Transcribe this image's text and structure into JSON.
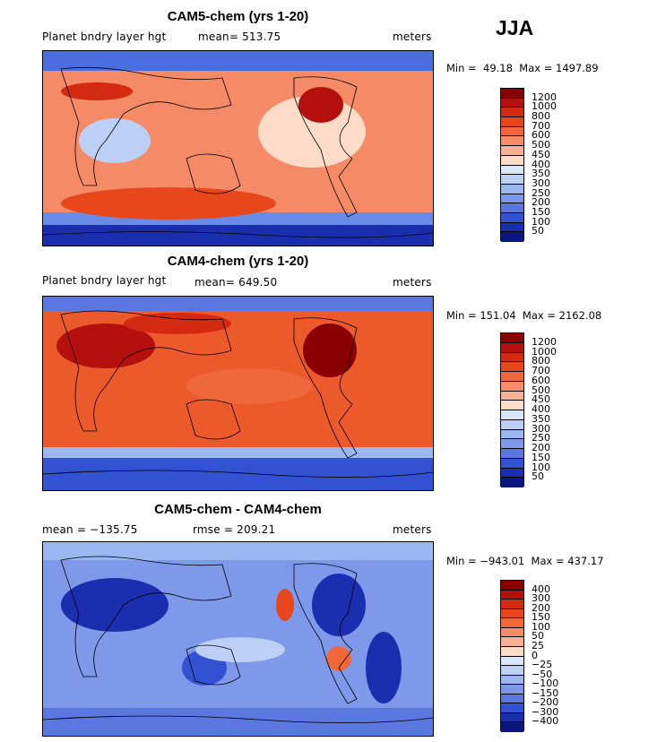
{
  "season": "JJA",
  "panels": [
    {
      "title": "CAM5-chem (yrs 1-20)",
      "left_label": "Planet bndry layer hgt",
      "stat_label": "mean=",
      "stat_value": "513.75",
      "units": "meters",
      "min_label": "Min =",
      "min_value": "49.18",
      "max_label": "Max =",
      "max_value": "1497.89",
      "levels": [
        "1200",
        "1000",
        "800",
        "700",
        "600",
        "500",
        "450",
        "400",
        "350",
        "300",
        "250",
        "200",
        "150",
        "100",
        "50"
      ],
      "colors": [
        "#8b0000",
        "#b5100d",
        "#d42a12",
        "#e8461b",
        "#f1673c",
        "#f68c68",
        "#f9b093",
        "#fcdcc8",
        "#d9e7fa",
        "#bcd0f5",
        "#9cb6f0",
        "#7e99ea",
        "#5a76df",
        "#3251d3",
        "#1a2fb0",
        "#0a1780"
      ],
      "map_bg": "#f58a66"
    },
    {
      "title": "CAM4-chem (yrs 1-20)",
      "left_label": "Planet bndry layer hgt",
      "stat_label": "mean=",
      "stat_value": "649.50",
      "units": "meters",
      "min_label": "Min =",
      "min_value": "151.04",
      "max_label": "Max =",
      "max_value": "2162.08",
      "levels": [
        "1200",
        "1000",
        "800",
        "700",
        "600",
        "500",
        "450",
        "400",
        "350",
        "300",
        "250",
        "200",
        "150",
        "100",
        "50"
      ],
      "colors": [
        "#8b0000",
        "#b5100d",
        "#d42a12",
        "#e8461b",
        "#f1673c",
        "#f68c68",
        "#f9b093",
        "#fcdcc8",
        "#d9e7fa",
        "#bcd0f5",
        "#9cb6f0",
        "#7e99ea",
        "#5a76df",
        "#3251d3",
        "#1a2fb0",
        "#0a1780"
      ],
      "map_bg": "#ec5a2c"
    },
    {
      "title": "CAM5-chem - CAM4-chem",
      "left_label": "mean = −135.75",
      "stat_label": "rmse =",
      "stat_value": "209.21",
      "units": "meters",
      "min_label": "Min =",
      "min_value": "−943.01",
      "max_label": "Max =",
      "max_value": "437.17",
      "levels": [
        "400",
        "300",
        "200",
        "150",
        "100",
        "50",
        "25",
        "0",
        "−25",
        "−50",
        "−100",
        "−150",
        "−200",
        "−300",
        "−400"
      ],
      "colors": [
        "#8b0000",
        "#b5100d",
        "#d42a12",
        "#e8461b",
        "#f1673c",
        "#f68c68",
        "#f9b093",
        "#fcdcc8",
        "#d9e7fa",
        "#bcd0f5",
        "#9cb6f0",
        "#7e99ea",
        "#5a76df",
        "#3251d3",
        "#1a2fb0",
        "#0a1780"
      ],
      "map_bg": "#5c7ee6"
    }
  ]
}
